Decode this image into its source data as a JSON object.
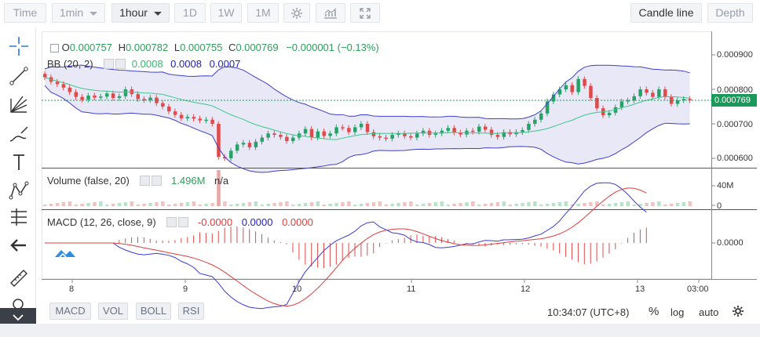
{
  "toolbar": {
    "time_label": "Time",
    "interval_1min": "1min",
    "interval_1hour": "1hour",
    "interval_1d": "1D",
    "interval_1w": "1W",
    "interval_1m": "1M",
    "candle_line_label": "Candle line",
    "depth_label": "Depth"
  },
  "legend": {
    "open_label": "O",
    "open": "0.000757",
    "high_label": "H",
    "high": "0.000782",
    "low_label": "L",
    "low": "0.000755",
    "close_label": "C",
    "close": "0.000769",
    "change": "−0.000001 (−0.13%)"
  },
  "bb": {
    "label": "BB (20, 2)",
    "v1": "0.0008",
    "v2": "0.0008",
    "v3": "0.0007"
  },
  "volume": {
    "label": "Volume (false, 20)",
    "v1": "1.496M",
    "v2": "n/a"
  },
  "macd": {
    "label": "MACD (12, 26, close, 9)",
    "v1": "-0.0000",
    "v2": "0.0000",
    "v3": "0.0000"
  },
  "price_axis": {
    "ticks": [
      "0.000900",
      "0.000800",
      "0.000700",
      "0.000600"
    ],
    "last_price": "0.000769",
    "volume_ticks": [
      "40M",
      "0"
    ],
    "macd_tick": "0.0000"
  },
  "time_axis": [
    "8",
    "9",
    "10",
    "11",
    "12",
    "13",
    "03:00"
  ],
  "bottom": {
    "macd_btn": "MACD",
    "vol_btn": "VOL",
    "boll_btn": "BOLL",
    "rsi_btn": "RSI",
    "clock": "10:34:07 (UTC+8)",
    "percent": "%",
    "log": "log",
    "auto": "auto"
  },
  "colors": {
    "up": "#26a269",
    "down": "#e04a4a",
    "bb_band": "#3f3fcc",
    "bb_mid": "#3cc88a",
    "macd_line": "#3a3ad6",
    "signal_line": "#e03c3c"
  }
}
